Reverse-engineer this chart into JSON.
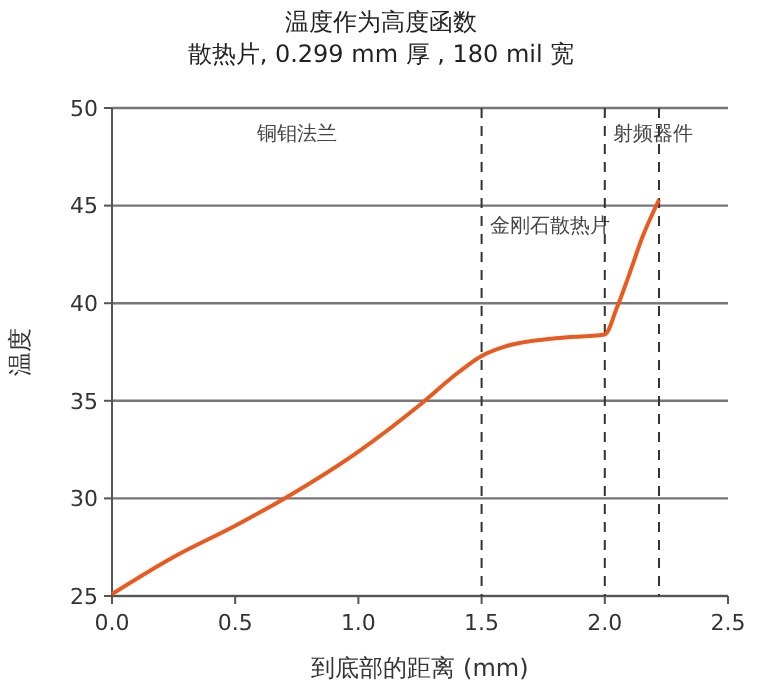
{
  "chart_data": {
    "type": "line",
    "title": "温度作为高度函数",
    "subtitle": "散热片, 0.299 mm 厚 , 180 mil 宽",
    "xlabel": "到底部的距离 (mm)",
    "ylabel": "温度",
    "x": [
      0,
      0.25,
      0.5,
      0.7,
      1.0,
      1.25,
      1.4,
      1.5,
      1.6,
      1.8,
      2.0,
      2.05,
      2.1,
      2.15,
      2.22
    ],
    "series": [
      {
        "color": "#ea5a1e",
        "values": [
          25.1,
          27,
          28.6,
          30,
          32.4,
          34.8,
          36.4,
          37.3,
          37.8,
          38.2,
          38.4,
          39.8,
          41.5,
          43.3,
          45.3
        ]
      }
    ],
    "xlim": [
      0,
      2.5
    ],
    "xticks": [
      {
        "value": 0,
        "label": "0.0"
      },
      0.5,
      {
        "value": 1,
        "label": "1.0"
      },
      1.5,
      {
        "value": 2,
        "label": "2.0"
      },
      2.5
    ],
    "ylim": [
      25,
      50
    ],
    "yticks": [
      25,
      30,
      35,
      40,
      45,
      50
    ],
    "grid": "y",
    "line_style": "solid",
    "marker": "none",
    "ref_lines": [
      {
        "axis": "x",
        "value": 1.5,
        "line_style": "dashed",
        "color": "#333333",
        "label": "金刚石散热片"
      },
      {
        "axis": "x",
        "value": 2.0,
        "line_style": "dashed",
        "color": "#333333",
        "label": "射频器件"
      },
      {
        "axis": "x",
        "value": 2.22,
        "line_style": "dashed",
        "color": "#333333"
      }
    ],
    "annotations": [
      "铜钼法兰"
    ]
  }
}
